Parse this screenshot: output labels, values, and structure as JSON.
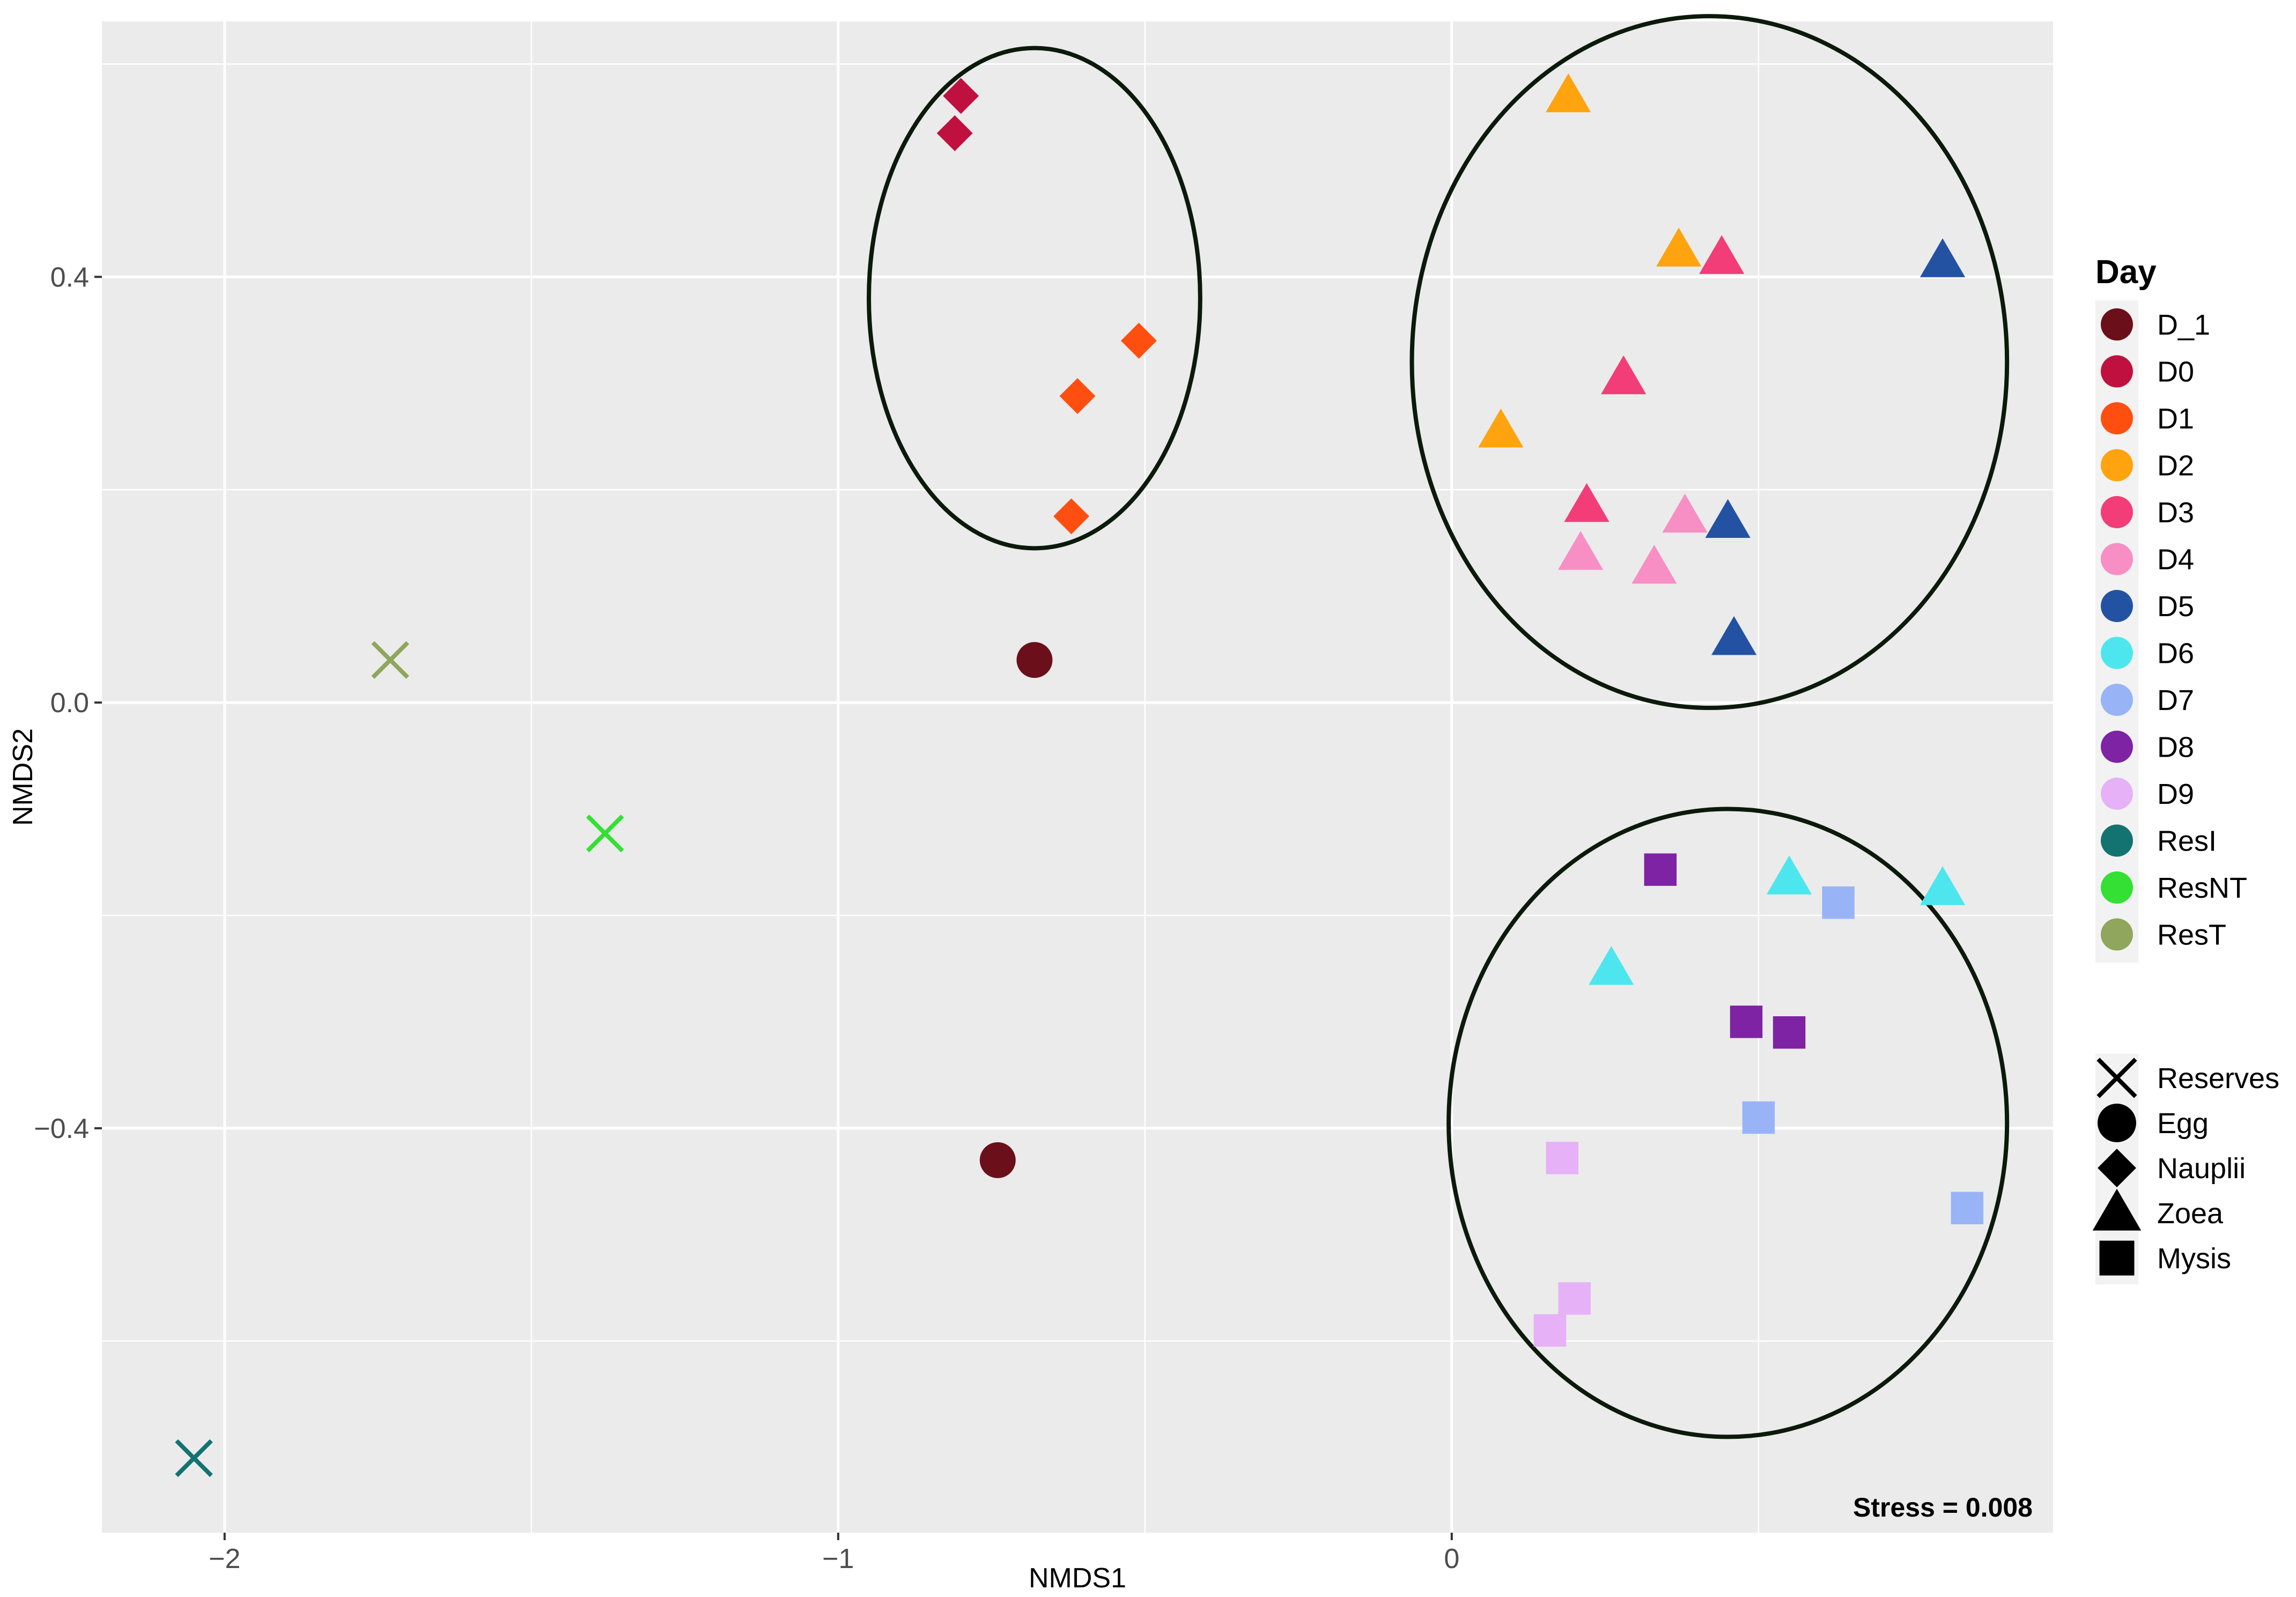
{
  "chart_data": {
    "type": "scatter",
    "title": "",
    "xlabel": "NMDS1",
    "ylabel": "NMDS2",
    "xlim": [
      -2.2,
      0.98
    ],
    "ylim": [
      -0.78,
      0.64
    ],
    "x_ticks": [
      {
        "value": -2,
        "label": "−2"
      },
      {
        "value": -1,
        "label": "−1"
      },
      {
        "value": 0,
        "label": "0"
      }
    ],
    "y_ticks": [
      {
        "value": 0.4,
        "label": "0.4"
      },
      {
        "value": 0.0,
        "label": "0.0"
      },
      {
        "value": -0.4,
        "label": "−0.4"
      }
    ],
    "grid": true,
    "annotation": "Stress = 0.008",
    "color_legend": {
      "title": "Day",
      "entries": [
        {
          "name": "D_1",
          "color": "#6b0f1a"
        },
        {
          "name": "D0",
          "color": "#c0103f"
        },
        {
          "name": "D1",
          "color": "#ff4f10"
        },
        {
          "name": "D2",
          "color": "#ffa30f"
        },
        {
          "name": "D3",
          "color": "#f23d78"
        },
        {
          "name": "D4",
          "color": "#f78fc4"
        },
        {
          "name": "D5",
          "color": "#2452a3"
        },
        {
          "name": "D6",
          "color": "#4ee6ee"
        },
        {
          "name": "D7",
          "color": "#98b4f7"
        },
        {
          "name": "D8",
          "color": "#7e23a3"
        },
        {
          "name": "D9",
          "color": "#e6b1f7"
        },
        {
          "name": "ResI",
          "color": "#137370"
        },
        {
          "name": "ResNT",
          "color": "#33e033"
        },
        {
          "name": "ResT",
          "color": "#8fa65c"
        }
      ]
    },
    "shape_legend": {
      "entries": [
        {
          "name": "Reserves",
          "shape": "cross"
        },
        {
          "name": "Egg",
          "shape": "circle"
        },
        {
          "name": "Nauplii",
          "shape": "diamond"
        },
        {
          "name": "Zoea",
          "shape": "triangle"
        },
        {
          "name": "Mysis",
          "shape": "square"
        }
      ]
    },
    "ellipses": [
      {
        "cx": -0.68,
        "cy": 0.38,
        "rx": 0.27,
        "ry": 0.235
      },
      {
        "cx": 0.42,
        "cy": 0.32,
        "rx": 0.485,
        "ry": 0.325
      },
      {
        "cx": 0.45,
        "cy": -0.395,
        "rx": 0.455,
        "ry": 0.295
      }
    ],
    "points": [
      {
        "x": -0.68,
        "y": 0.04,
        "day": "D_1",
        "shape": "circle"
      },
      {
        "x": -0.74,
        "y": -0.43,
        "day": "D_1",
        "shape": "circle"
      },
      {
        "x": -0.8,
        "y": 0.57,
        "day": "D0",
        "shape": "diamond"
      },
      {
        "x": -0.81,
        "y": 0.535,
        "day": "D0",
        "shape": "diamond"
      },
      {
        "x": -0.51,
        "y": 0.34,
        "day": "D1",
        "shape": "diamond"
      },
      {
        "x": -0.61,
        "y": 0.288,
        "day": "D1",
        "shape": "diamond"
      },
      {
        "x": -0.62,
        "y": 0.175,
        "day": "D1",
        "shape": "diamond"
      },
      {
        "x": 0.19,
        "y": 0.57,
        "day": "D2",
        "shape": "triangle"
      },
      {
        "x": 0.37,
        "y": 0.425,
        "day": "D2",
        "shape": "triangle"
      },
      {
        "x": 0.08,
        "y": 0.255,
        "day": "D2",
        "shape": "triangle"
      },
      {
        "x": 0.44,
        "y": 0.418,
        "day": "D3",
        "shape": "triangle"
      },
      {
        "x": 0.28,
        "y": 0.305,
        "day": "D3",
        "shape": "triangle"
      },
      {
        "x": 0.22,
        "y": 0.185,
        "day": "D3",
        "shape": "triangle"
      },
      {
        "x": 0.38,
        "y": 0.175,
        "day": "D4",
        "shape": "triangle"
      },
      {
        "x": 0.21,
        "y": 0.14,
        "day": "D4",
        "shape": "triangle"
      },
      {
        "x": 0.33,
        "y": 0.127,
        "day": "D4",
        "shape": "triangle"
      },
      {
        "x": 0.8,
        "y": 0.415,
        "day": "D5",
        "shape": "triangle"
      },
      {
        "x": 0.45,
        "y": 0.17,
        "day": "D5",
        "shape": "triangle"
      },
      {
        "x": 0.46,
        "y": 0.06,
        "day": "D5",
        "shape": "triangle"
      },
      {
        "x": 0.55,
        "y": -0.165,
        "day": "D6",
        "shape": "triangle"
      },
      {
        "x": 0.8,
        "y": -0.175,
        "day": "D6",
        "shape": "triangle"
      },
      {
        "x": 0.26,
        "y": -0.25,
        "day": "D6",
        "shape": "triangle"
      },
      {
        "x": 0.63,
        "y": -0.188,
        "day": "D7",
        "shape": "square"
      },
      {
        "x": 0.5,
        "y": -0.39,
        "day": "D7",
        "shape": "square"
      },
      {
        "x": 0.84,
        "y": -0.475,
        "day": "D7",
        "shape": "square"
      },
      {
        "x": 0.34,
        "y": -0.157,
        "day": "D8",
        "shape": "square"
      },
      {
        "x": 0.48,
        "y": -0.3,
        "day": "D8",
        "shape": "square"
      },
      {
        "x": 0.55,
        "y": -0.31,
        "day": "D8",
        "shape": "square"
      },
      {
        "x": 0.18,
        "y": -0.428,
        "day": "D9",
        "shape": "square"
      },
      {
        "x": 0.2,
        "y": -0.56,
        "day": "D9",
        "shape": "square"
      },
      {
        "x": 0.16,
        "y": -0.59,
        "day": "D9",
        "shape": "square"
      },
      {
        "x": -2.05,
        "y": -0.71,
        "day": "ResI",
        "shape": "cross"
      },
      {
        "x": -1.38,
        "y": -0.123,
        "day": "ResNT",
        "shape": "cross"
      },
      {
        "x": -1.73,
        "y": 0.04,
        "day": "ResT",
        "shape": "cross"
      }
    ]
  }
}
